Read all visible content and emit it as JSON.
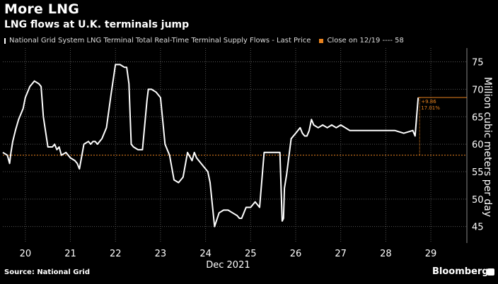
{
  "title": "More LNG",
  "subtitle": "LNG flows at U.K. terminals jump",
  "legend": {
    "series_label": "National Grid System LNG Terminal Total Real-Time Terminal Supply Flows - Last Price",
    "close_label": "Close on 12/19 ---- 58"
  },
  "source": "Source: National Grid",
  "brand": "Bloomberg",
  "brand_icon": "bloomberg-terminal-icon",
  "colors": {
    "series": "#ffffff",
    "close_line": "#e8821e",
    "grid": "#555555",
    "annotation": "#e8821e"
  },
  "chart_data": {
    "type": "line",
    "xlabel": "Dec 2021",
    "ylabel": "Million cubic meters per day",
    "xlim": [
      19.5,
      29.8
    ],
    "ylim": [
      42,
      77
    ],
    "x_ticks": [
      20,
      21,
      22,
      23,
      24,
      25,
      26,
      27,
      28,
      29
    ],
    "x_tick_labels": [
      "20",
      "21",
      "22",
      "23",
      "24",
      "25",
      "26",
      "27",
      "28",
      "29"
    ],
    "y_ticks": [
      45,
      50,
      55,
      60,
      65,
      70,
      75
    ],
    "y_tick_labels": [
      "45",
      "50",
      "55",
      "60",
      "65",
      "70",
      "75"
    ],
    "grid": true,
    "y_axis_position": "right",
    "reference_line": {
      "name": "Close on 12/19",
      "value": 58
    },
    "annotations": [
      "+9.86",
      "17.01%"
    ],
    "series": [
      {
        "name": "National Grid System LNG Terminal Total Real-Time Terminal Supply Flows - Last Price",
        "x": [
          19.5,
          19.6,
          19.65,
          19.68,
          19.72,
          19.78,
          19.85,
          19.9,
          19.95,
          20.0,
          20.1,
          20.2,
          20.3,
          20.35,
          20.4,
          20.5,
          20.6,
          20.65,
          20.7,
          20.75,
          20.8,
          20.9,
          21.0,
          21.1,
          21.15,
          21.2,
          21.3,
          21.4,
          21.45,
          21.5,
          21.55,
          21.6,
          21.7,
          21.8,
          21.9,
          22.0,
          22.1,
          22.2,
          22.25,
          22.3,
          22.35,
          22.4,
          22.5,
          22.6,
          22.7,
          22.73,
          22.8,
          22.9,
          23.0,
          23.1,
          23.2,
          23.3,
          23.4,
          23.5,
          23.6,
          23.7,
          23.75,
          23.8,
          23.9,
          24.0,
          24.05,
          24.1,
          24.2,
          24.3,
          24.4,
          24.5,
          24.6,
          24.7,
          24.75,
          24.8,
          24.9,
          25.0,
          25.1,
          25.2,
          25.3,
          25.4,
          25.5,
          25.55,
          25.6,
          25.65,
          25.7,
          25.73,
          25.75,
          25.8,
          25.9,
          26.0,
          26.1,
          26.15,
          26.2,
          26.25,
          26.3,
          26.35,
          26.4,
          26.5,
          26.6,
          26.7,
          26.8,
          26.9,
          27.0,
          27.2,
          27.4,
          27.6,
          27.8,
          28.0,
          28.2,
          28.4,
          28.6,
          28.65,
          28.7,
          28.72
        ],
        "y": [
          58.5,
          58.0,
          56.5,
          58.5,
          60.5,
          62.5,
          64.5,
          65.5,
          66.5,
          68.5,
          70.5,
          71.5,
          71.0,
          70.5,
          65.0,
          59.5,
          59.5,
          60.0,
          59.0,
          59.5,
          58.0,
          58.5,
          57.5,
          57.0,
          56.5,
          55.5,
          60.0,
          60.5,
          60.0,
          60.5,
          60.5,
          60.0,
          61.0,
          63.0,
          69.0,
          74.5,
          74.5,
          74.0,
          74.0,
          71.0,
          60.0,
          59.5,
          59.0,
          59.0,
          68.0,
          70.0,
          70.0,
          69.5,
          68.5,
          60.0,
          58.0,
          53.5,
          53.0,
          54.0,
          58.5,
          57.0,
          58.5,
          57.5,
          56.5,
          55.5,
          55.0,
          53.0,
          45.0,
          47.5,
          48.0,
          48.0,
          47.5,
          47.0,
          46.5,
          46.5,
          48.5,
          48.5,
          49.5,
          48.5,
          58.5,
          58.5,
          58.5,
          58.5,
          58.5,
          58.5,
          46.0,
          46.5,
          52.0,
          54.5,
          61.0,
          62.0,
          63.0,
          62.0,
          61.5,
          61.5,
          62.5,
          64.5,
          63.5,
          63.0,
          63.5,
          63.0,
          63.5,
          63.0,
          63.5,
          62.5,
          62.5,
          62.5,
          62.5,
          62.5,
          62.5,
          62.0,
          62.5,
          61.5,
          66.5,
          68.5
        ]
      }
    ]
  }
}
